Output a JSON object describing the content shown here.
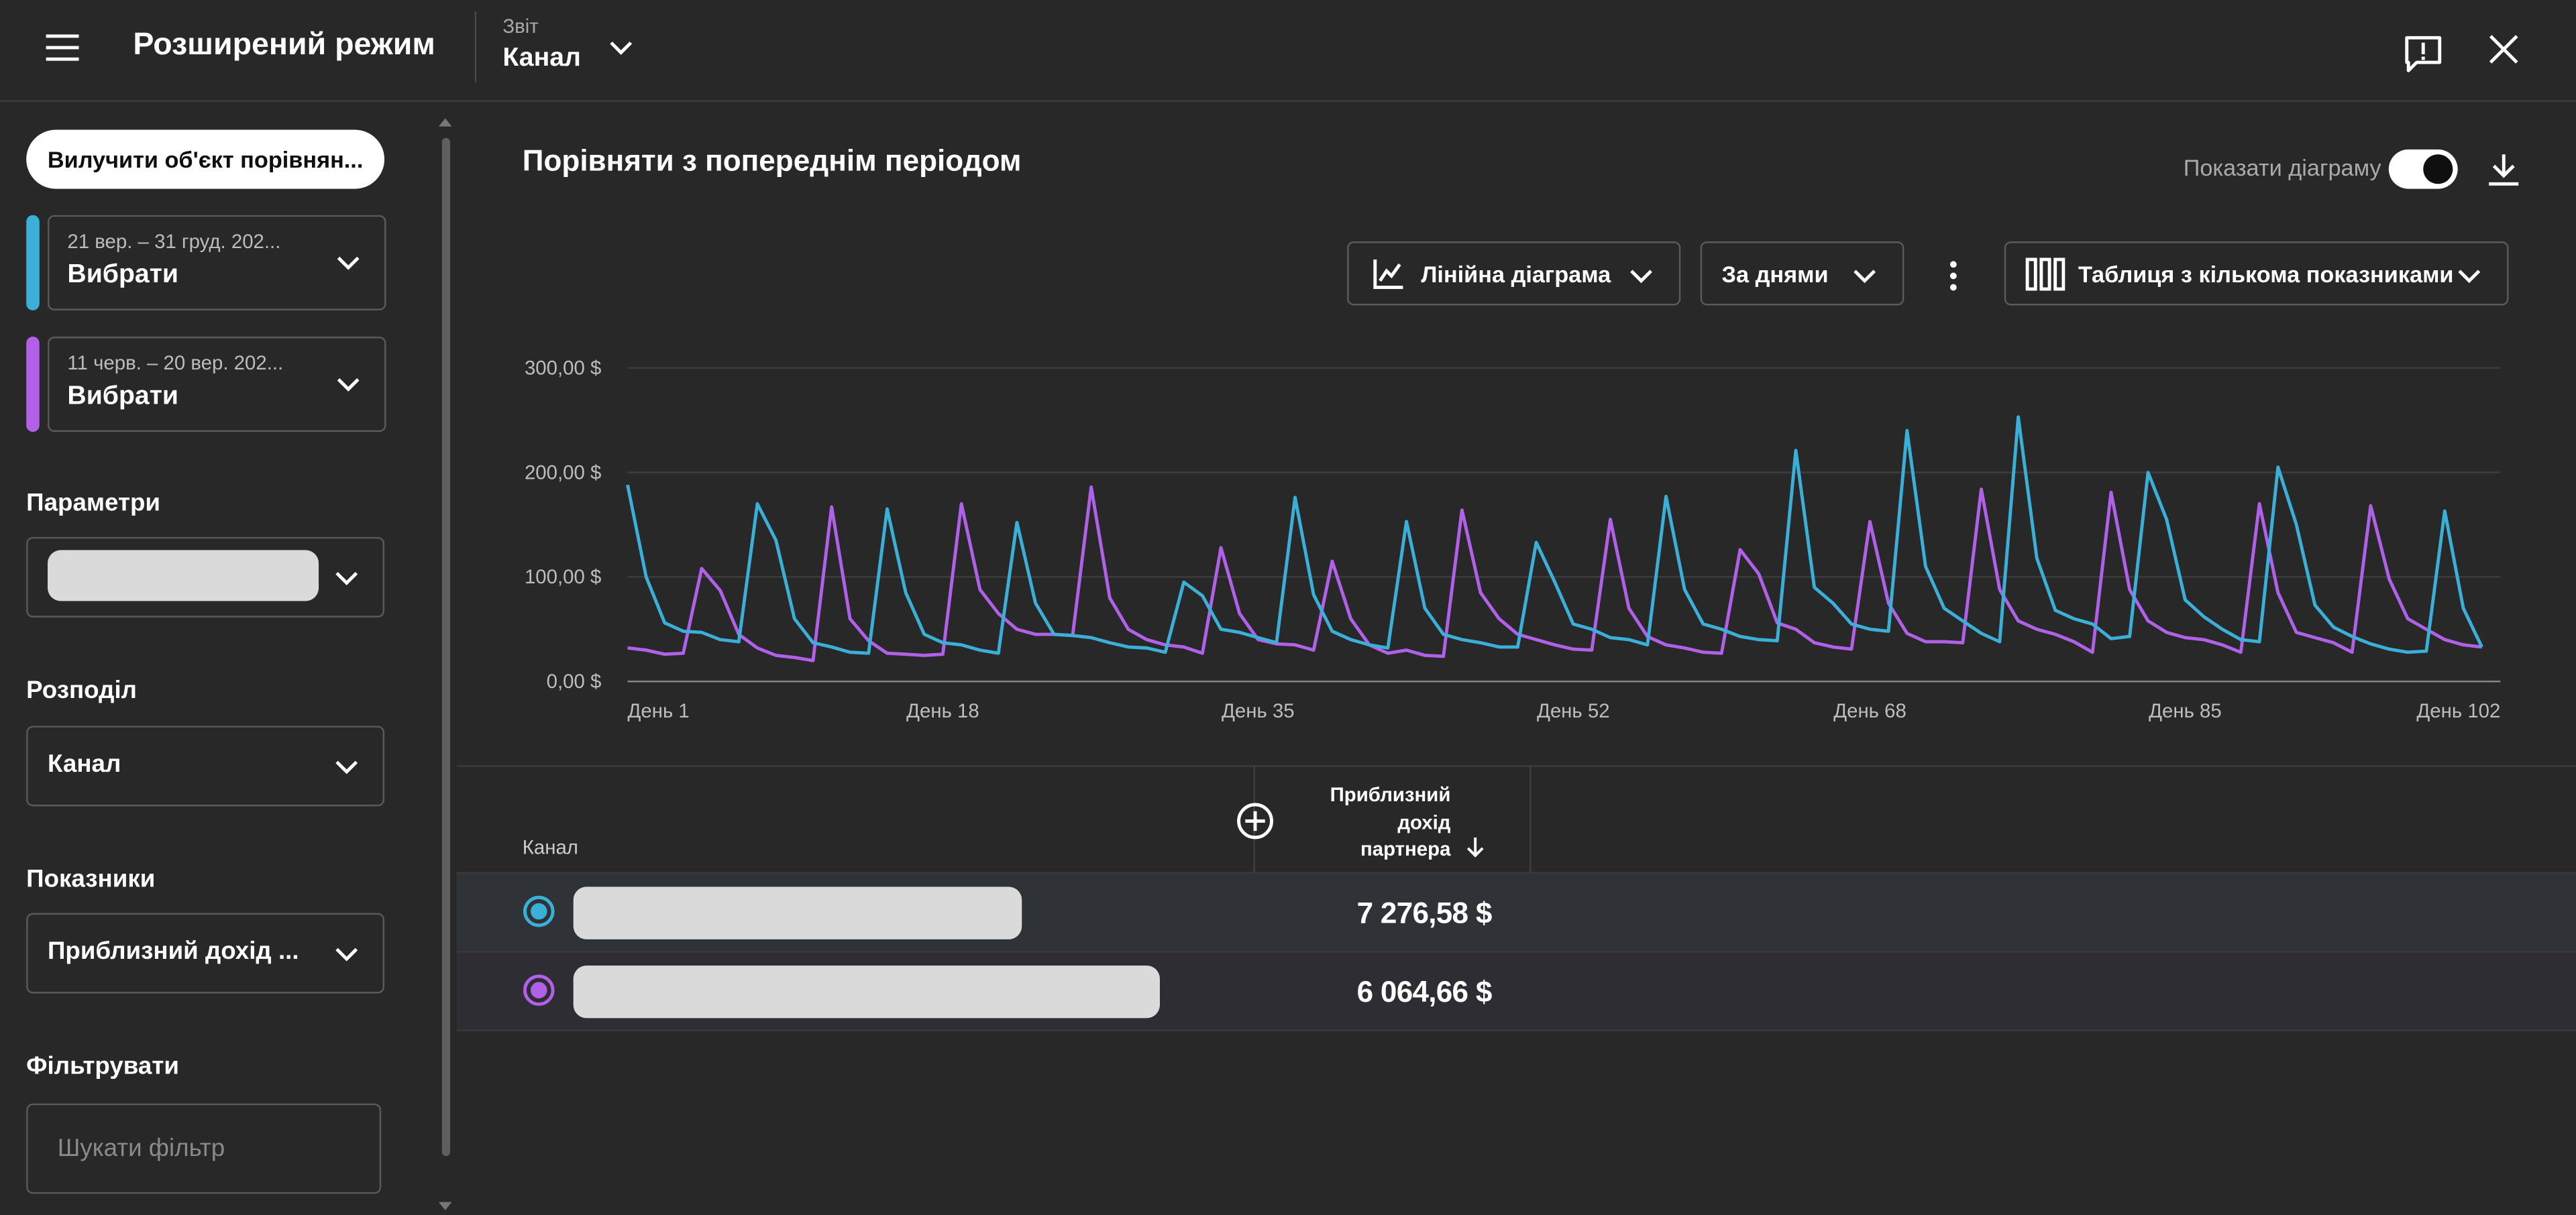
{
  "header": {
    "title": "Розширений режим",
    "report_label": "Звіт",
    "report_value": "Канал",
    "icons": [
      "menu-icon",
      "chevron-down-icon",
      "feedback-icon",
      "close-icon"
    ]
  },
  "sidebar": {
    "exclude_button": "Вилучити об'єкт порівнян...",
    "periods": [
      {
        "range": "21 вер. – 31 груд. 202...",
        "select": "Вибрати",
        "color": "#3ab0d8"
      },
      {
        "range": "11 черв. – 20 вер. 202...",
        "select": "Вибрати",
        "color": "#b061e8"
      }
    ],
    "params_heading": "Параметри",
    "split_heading": "Розподіл",
    "split_value": "Канал",
    "metrics_heading": "Показники",
    "metrics_value": "Приблизний дохід ...",
    "filter_heading": "Фільтрувати",
    "filter_placeholder": "Шукати фільтр"
  },
  "main": {
    "title": "Порівняти з попереднім періодом",
    "show_chart_label": "Показати діаграму",
    "show_chart_on": true,
    "chart_type": "Лінійна діаграма",
    "granularity": "За днями",
    "table_type": "Таблиця з кількома показниками"
  },
  "chart_data": {
    "type": "line",
    "ylim": [
      0,
      300
    ],
    "y_ticks": [
      "0,00 $",
      "100,00 $",
      "200,00 $",
      "300,00 $"
    ],
    "x_tick_labels": [
      "День 1",
      "День 18",
      "День 35",
      "День 52",
      "День 68",
      "День 85",
      "День 102"
    ],
    "x_tick_values": [
      1,
      18,
      35,
      52,
      68,
      85,
      102
    ],
    "x_range": [
      1,
      102
    ],
    "grid": true,
    "series": [
      {
        "color": "#3ab0d8",
        "values": [
          188,
          100,
          56,
          48,
          47,
          40,
          38,
          170,
          135,
          60,
          37,
          33,
          28,
          27,
          165,
          85,
          45,
          37,
          35,
          30,
          27,
          152,
          75,
          45,
          44,
          42,
          37,
          33,
          32,
          28,
          95,
          82,
          50,
          47,
          42,
          37,
          176,
          83,
          48,
          40,
          35,
          32,
          153,
          70,
          45,
          40,
          37,
          33,
          33,
          133,
          95,
          55,
          50,
          42,
          40,
          35,
          177,
          88,
          55,
          50,
          43,
          40,
          39,
          221,
          90,
          75,
          55,
          50,
          48,
          240,
          110,
          70,
          58,
          46,
          38,
          253,
          118,
          68,
          60,
          55,
          41,
          43,
          200,
          155,
          78,
          62,
          50,
          40,
          38,
          205,
          150,
          73,
          52,
          43,
          36,
          31,
          28,
          29,
          163,
          70,
          33
        ]
      },
      {
        "color": "#b061e8",
        "values": [
          32,
          30,
          26,
          27,
          108,
          87,
          45,
          32,
          25,
          23,
          20,
          167,
          60,
          39,
          27,
          26,
          25,
          26,
          170,
          88,
          65,
          50,
          45,
          45,
          44,
          186,
          80,
          50,
          40,
          35,
          33,
          27,
          128,
          65,
          40,
          36,
          35,
          30,
          115,
          60,
          35,
          27,
          30,
          25,
          24,
          164,
          85,
          60,
          45,
          40,
          35,
          31,
          30,
          155,
          70,
          43,
          35,
          32,
          28,
          27,
          126,
          103,
          56,
          50,
          37,
          33,
          31,
          153,
          75,
          46,
          38,
          38,
          37,
          184,
          88,
          58,
          50,
          45,
          38,
          28,
          181,
          88,
          58,
          47,
          42,
          40,
          35,
          28,
          170,
          85,
          47,
          42,
          37,
          28,
          168,
          98,
          60,
          50,
          40,
          35,
          33
        ]
      }
    ]
  },
  "table": {
    "col_channel": "Канал",
    "col_metric": "Приблизний дохід партнера",
    "rows": [
      {
        "value": "7 276,58 $",
        "color": "#3ab0d8"
      },
      {
        "value": "6 064,66 $",
        "color": "#b061e8"
      }
    ]
  }
}
